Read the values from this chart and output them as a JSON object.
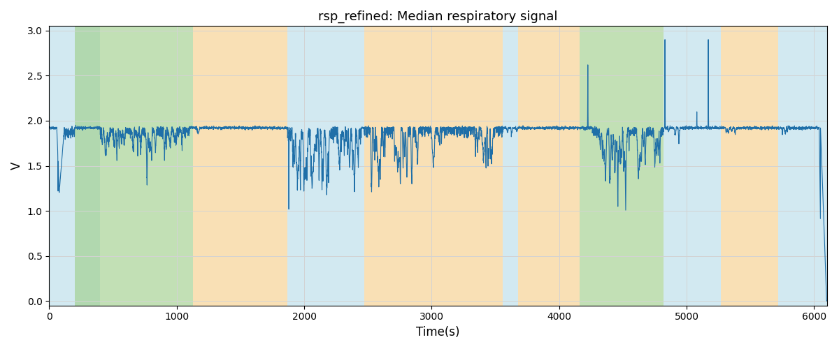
{
  "title": "rsp_refined: Median respiratory signal",
  "xlabel": "Time(s)",
  "ylabel": "V",
  "xlim": [
    0,
    6100
  ],
  "ylim": [
    -0.05,
    3.05
  ],
  "yticks": [
    0.0,
    0.5,
    1.0,
    1.5,
    2.0,
    2.5,
    3.0
  ],
  "xticks": [
    0,
    1000,
    2000,
    3000,
    4000,
    5000,
    6000
  ],
  "line_color": "#1f6fa8",
  "line_width": 0.8,
  "base_value": 1.92,
  "bg_bands": [
    [
      0,
      200,
      "#add8e6",
      0.55
    ],
    [
      200,
      400,
      "#add8e6",
      0.45
    ],
    [
      200,
      1130,
      "#90c878",
      0.55
    ],
    [
      1130,
      1870,
      "#f5c878",
      0.55
    ],
    [
      1870,
      2470,
      "#add8e6",
      0.55
    ],
    [
      2470,
      3560,
      "#f5c878",
      0.55
    ],
    [
      3560,
      3680,
      "#add8e6",
      0.55
    ],
    [
      3680,
      4160,
      "#f5c878",
      0.55
    ],
    [
      4160,
      4820,
      "#90c878",
      0.55
    ],
    [
      4820,
      5270,
      "#add8e6",
      0.55
    ],
    [
      5270,
      5720,
      "#f5c878",
      0.55
    ],
    [
      5720,
      6100,
      "#add8e6",
      0.55
    ]
  ],
  "seed": 42
}
